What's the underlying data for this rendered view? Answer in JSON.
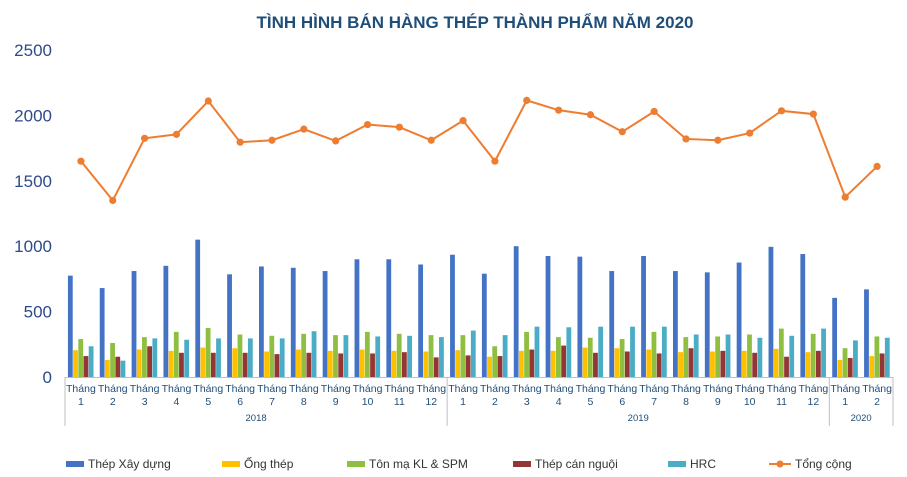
{
  "chart_data": {
    "type": "bar",
    "title": "TÌNH HÌNH BÁN HÀNG THÉP THÀNH PHẨM NĂM 2020",
    "ylim": [
      0,
      2500
    ],
    "yticks": [
      0,
      500,
      1000,
      1500,
      2000,
      2500
    ],
    "grid": false,
    "legend_position": "bottom",
    "categories": [
      {
        "line1": "Tháng",
        "line2": "1"
      },
      {
        "line1": "Tháng",
        "line2": "2"
      },
      {
        "line1": "Tháng",
        "line2": "3"
      },
      {
        "line1": "Tháng",
        "line2": "4"
      },
      {
        "line1": "Tháng",
        "line2": "5"
      },
      {
        "line1": "Tháng",
        "line2": "6"
      },
      {
        "line1": "Tháng",
        "line2": "7"
      },
      {
        "line1": "Tháng",
        "line2": "8"
      },
      {
        "line1": "Tháng",
        "line2": "9"
      },
      {
        "line1": "Tháng",
        "line2": "10"
      },
      {
        "line1": "Tháng",
        "line2": "11"
      },
      {
        "line1": "Tháng",
        "line2": "12"
      },
      {
        "line1": "Tháng",
        "line2": "1"
      },
      {
        "line1": "Tháng",
        "line2": "2"
      },
      {
        "line1": "Tháng",
        "line2": "3"
      },
      {
        "line1": "Tháng",
        "line2": "4"
      },
      {
        "line1": "Tháng",
        "line2": "5"
      },
      {
        "line1": "Tháng",
        "line2": "6"
      },
      {
        "line1": "Tháng",
        "line2": "7"
      },
      {
        "line1": "Tháng",
        "line2": "8"
      },
      {
        "line1": "Tháng",
        "line2": "9"
      },
      {
        "line1": "Tháng",
        "line2": "10"
      },
      {
        "line1": "Tháng",
        "line2": "11"
      },
      {
        "line1": "Tháng",
        "line2": "12"
      },
      {
        "line1": "Tháng",
        "line2": "1"
      },
      {
        "line1": "Tháng",
        "line2": "2"
      }
    ],
    "groups": [
      {
        "label": "2018",
        "count": 12
      },
      {
        "label": "2019",
        "count": 12
      },
      {
        "label": "2020",
        "count": 2
      }
    ],
    "series": [
      {
        "name": "Thép Xây dựng",
        "kind": "bar",
        "color": "#4472c4",
        "values": [
          775,
          680,
          810,
          850,
          1050,
          785,
          845,
          835,
          810,
          900,
          900,
          860,
          935,
          790,
          1000,
          925,
          920,
          810,
          925,
          810,
          800,
          875,
          995,
          940,
          605,
          670
        ]
      },
      {
        "name": "Ống thép",
        "kind": "bar",
        "color": "#ffc000",
        "values": [
          205,
          130,
          210,
          200,
          225,
          220,
          195,
          210,
          200,
          210,
          200,
          195,
          205,
          155,
          200,
          200,
          225,
          220,
          210,
          190,
          195,
          200,
          215,
          190,
          130,
          160
        ]
      },
      {
        "name": "Tôn mạ KL & SPM",
        "kind": "bar",
        "color": "#8fbf40",
        "values": [
          290,
          260,
          305,
          345,
          375,
          325,
          315,
          330,
          320,
          345,
          330,
          320,
          320,
          235,
          345,
          305,
          300,
          290,
          345,
          305,
          310,
          325,
          370,
          330,
          220,
          310
        ]
      },
      {
        "name": "Thép cán nguội",
        "kind": "bar",
        "color": "#943634",
        "values": [
          160,
          155,
          235,
          185,
          185,
          185,
          175,
          185,
          180,
          180,
          190,
          150,
          165,
          160,
          210,
          240,
          185,
          195,
          180,
          220,
          200,
          185,
          155,
          200,
          145,
          180
        ]
      },
      {
        "name": "HRC",
        "kind": "bar",
        "color": "#4bacc6",
        "values": [
          235,
          125,
          295,
          285,
          295,
          295,
          295,
          350,
          320,
          310,
          315,
          305,
          355,
          320,
          385,
          380,
          385,
          385,
          385,
          325,
          325,
          300,
          315,
          370,
          280,
          300
        ]
      },
      {
        "name": "Tổng cộng",
        "kind": "line",
        "color": "#ed7d31",
        "values": [
          1650,
          1350,
          1825,
          1855,
          2110,
          1795,
          1810,
          1895,
          1805,
          1930,
          1910,
          1810,
          1960,
          1650,
          2115,
          2040,
          2005,
          1875,
          2030,
          1820,
          1810,
          1865,
          2035,
          2010,
          1375,
          1610
        ]
      }
    ]
  }
}
